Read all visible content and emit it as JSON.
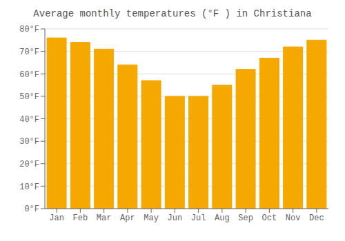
{
  "chart_data": {
    "type": "bar",
    "title": "Average monthly temperatures (°F ) in Christiana",
    "categories": [
      "Jan",
      "Feb",
      "Mar",
      "Apr",
      "May",
      "Jun",
      "Jul",
      "Aug",
      "Sep",
      "Oct",
      "Nov",
      "Dec"
    ],
    "values": [
      76,
      74,
      71,
      64,
      57,
      50,
      50,
      55,
      62,
      67,
      72,
      75
    ],
    "color": "#F5A800",
    "ylim": [
      0,
      80
    ],
    "yticks": [
      {
        "value": 0,
        "label": "0°F"
      },
      {
        "value": 10,
        "label": "10°F"
      },
      {
        "value": 20,
        "label": "20°F"
      },
      {
        "value": 30,
        "label": "30°F"
      },
      {
        "value": 40,
        "label": "40°F"
      },
      {
        "value": 50,
        "label": "50°F"
      },
      {
        "value": 60,
        "label": "60°F"
      },
      {
        "value": 70,
        "label": "70°F"
      },
      {
        "value": 80,
        "label": "80°F"
      }
    ],
    "grid": true
  }
}
